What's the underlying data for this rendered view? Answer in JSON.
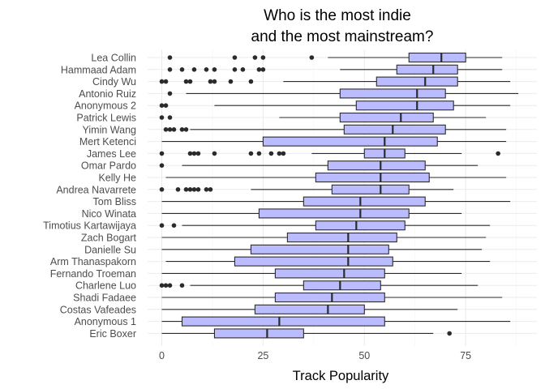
{
  "chart_data": {
    "type": "boxplot",
    "orientation": "horizontal",
    "title_lines": [
      "Who is the most indie",
      "and the most mainstream?"
    ],
    "xlabel": "Track Popularity",
    "ylabel": "",
    "xlim": [
      -4.5,
      89
    ],
    "x_ticks": [
      0,
      25,
      50,
      75
    ],
    "x_tick_labels": [
      "0",
      "25",
      "50",
      "75"
    ],
    "grid": true,
    "colors": {
      "box_fill": "#bbbcff",
      "box_stroke": "#2b2b2b",
      "outlier": "#2b2b2b"
    },
    "series": [
      {
        "name": "Lea Collin",
        "min": 41,
        "q1": 61,
        "median": 69,
        "q3": 75,
        "max": 84,
        "outliers": [
          2,
          18,
          23,
          25,
          37
        ]
      },
      {
        "name": "Hammaad Adam",
        "min": 44,
        "q1": 58,
        "median": 67,
        "q3": 73,
        "max": 84,
        "outliers": [
          2,
          5,
          8,
          11,
          13,
          18,
          20,
          24,
          25
        ]
      },
      {
        "name": "Cindy Wu",
        "min": 30,
        "q1": 53,
        "median": 65,
        "q3": 73,
        "max": 86,
        "outliers": [
          0,
          1,
          6,
          7,
          12,
          13,
          17,
          22
        ]
      },
      {
        "name": "Antonio Ruiz",
        "min": 6,
        "q1": 44,
        "median": 63,
        "q3": 70,
        "max": 88,
        "outliers": [
          2
        ]
      },
      {
        "name": "Anonymous 2",
        "min": 13,
        "q1": 48,
        "median": 63,
        "q3": 72,
        "max": 86,
        "outliers": [
          0,
          1
        ]
      },
      {
        "name": "Patrick Lewis",
        "min": 29,
        "q1": 44,
        "median": 59,
        "q3": 67,
        "max": 80,
        "outliers": [
          0,
          2
        ]
      },
      {
        "name": "Yimin Wang",
        "min": 7,
        "q1": 45,
        "median": 57,
        "q3": 70,
        "max": 85,
        "outliers": [
          1,
          2,
          3,
          5,
          6
        ]
      },
      {
        "name": "Mert Ketenci",
        "min": 0,
        "q1": 25,
        "median": 55,
        "q3": 68,
        "max": 85,
        "outliers": []
      },
      {
        "name": "James Lee",
        "min": 37,
        "q1": 50,
        "median": 55,
        "q3": 60,
        "max": 74,
        "outliers": [
          0,
          7,
          8,
          9,
          13,
          22,
          24,
          27,
          29,
          30,
          83
        ]
      },
      {
        "name": "Omar Pardo",
        "min": 5,
        "q1": 41,
        "median": 54,
        "q3": 65,
        "max": 78,
        "outliers": [
          0
        ]
      },
      {
        "name": "Kelly He",
        "min": 1,
        "q1": 38,
        "median": 54,
        "q3": 66,
        "max": 85,
        "outliers": []
      },
      {
        "name": "Andrea Navarrete",
        "min": 22,
        "q1": 42,
        "median": 54,
        "q3": 61,
        "max": 72,
        "outliers": [
          0,
          4,
          6,
          7,
          8,
          9,
          11,
          12
        ]
      },
      {
        "name": "Tom Bliss",
        "min": 0,
        "q1": 35,
        "median": 49,
        "q3": 65,
        "max": 86,
        "outliers": []
      },
      {
        "name": "Nico Winata",
        "min": 0,
        "q1": 24,
        "median": 49,
        "q3": 61,
        "max": 74,
        "outliers": []
      },
      {
        "name": "Timotius Kartawijaya",
        "min": 5,
        "q1": 38,
        "median": 48,
        "q3": 60,
        "max": 81,
        "outliers": [
          0,
          3
        ]
      },
      {
        "name": "Zach Bogart",
        "min": 0,
        "q1": 31,
        "median": 46,
        "q3": 58,
        "max": 80,
        "outliers": []
      },
      {
        "name": "Danielle Su",
        "min": 0,
        "q1": 22,
        "median": 46,
        "q3": 56,
        "max": 79,
        "outliers": []
      },
      {
        "name": "Arm Thanaspakorn",
        "min": 1,
        "q1": 18,
        "median": 46,
        "q3": 57,
        "max": 81,
        "outliers": []
      },
      {
        "name": "Fernando Troeman",
        "min": 0,
        "q1": 28,
        "median": 45,
        "q3": 55,
        "max": 74,
        "outliers": []
      },
      {
        "name": "Charlene Luo",
        "min": 7,
        "q1": 35,
        "median": 44,
        "q3": 54,
        "max": 78,
        "outliers": [
          0,
          1,
          2,
          5
        ]
      },
      {
        "name": "Shadi Fadaee",
        "min": 0,
        "q1": 28,
        "median": 42,
        "q3": 55,
        "max": 84,
        "outliers": []
      },
      {
        "name": "Costas Vafeades",
        "min": 0,
        "q1": 23,
        "median": 41,
        "q3": 50,
        "max": 73,
        "outliers": []
      },
      {
        "name": "Anonymous 1",
        "min": 0,
        "q1": 5,
        "median": 29,
        "q3": 55,
        "max": 86,
        "outliers": []
      },
      {
        "name": "Eric Boxer",
        "min": 0,
        "q1": 13,
        "median": 26,
        "q3": 35,
        "max": 67,
        "outliers": [
          71
        ]
      }
    ]
  }
}
